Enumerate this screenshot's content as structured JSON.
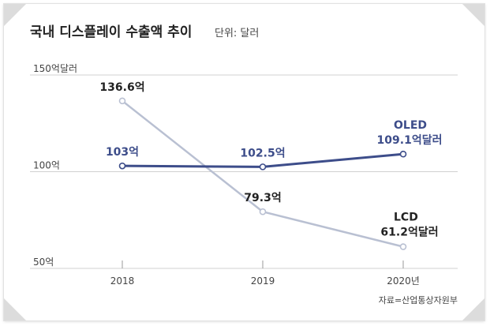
{
  "title": "국내 디스플레이 수출액 추이",
  "unit_label": "단위: 달러",
  "source": "자료=산업통상자원부",
  "colors": {
    "oled": "#3d4d8a",
    "lcd": "#b9c0d2",
    "grid": "#d0d0d0",
    "text": "#222222"
  },
  "chart_data": {
    "type": "line",
    "x": [
      "2018",
      "2019",
      "2020년"
    ],
    "ylim": [
      50,
      150
    ],
    "yticks": [
      {
        "value": 150,
        "label": "150억달러"
      },
      {
        "value": 100,
        "label": "100억"
      },
      {
        "value": 50,
        "label": "50억"
      }
    ],
    "grid": true,
    "series": [
      {
        "name": "OLED",
        "values": [
          103,
          102.5,
          109.1
        ],
        "labels": [
          "103억",
          "102.5억",
          "109.1억달러"
        ],
        "color": "#3d4d8a"
      },
      {
        "name": "LCD",
        "values": [
          136.6,
          79.3,
          61.2
        ],
        "labels": [
          "136.6억",
          "79.3억",
          "61.2억달러"
        ],
        "color": "#b9c0d2"
      }
    ]
  }
}
